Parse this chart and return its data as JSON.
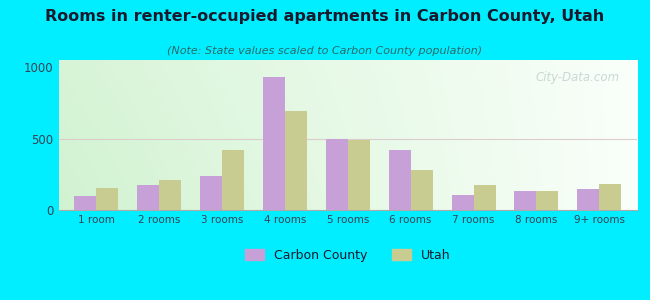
{
  "title": "Rooms in renter-occupied apartments in Carbon County, Utah",
  "subtitle": "(Note: State values scaled to Carbon County population)",
  "categories": [
    "1 room",
    "2 rooms",
    "3 rooms",
    "4 rooms",
    "5 rooms",
    "6 rooms",
    "7 rooms",
    "8 rooms",
    "9+ rooms"
  ],
  "carbon_county": [
    100,
    175,
    240,
    930,
    500,
    420,
    105,
    135,
    150
  ],
  "utah": [
    155,
    210,
    420,
    690,
    490,
    280,
    175,
    130,
    185
  ],
  "carbon_color": "#c8a0d8",
  "utah_color": "#c8cc90",
  "background_outer": "#00eeff",
  "ylim": [
    0,
    1050
  ],
  "yticks": [
    0,
    500,
    1000
  ],
  "bar_width": 0.35,
  "legend_carbon": "Carbon County",
  "legend_utah": "Utah",
  "watermark": "City-Data.com",
  "title_color": "#1a1a2e",
  "subtitle_color": "#2a6a6a",
  "tick_color": "#334455",
  "grid_color": "#ddcccc"
}
